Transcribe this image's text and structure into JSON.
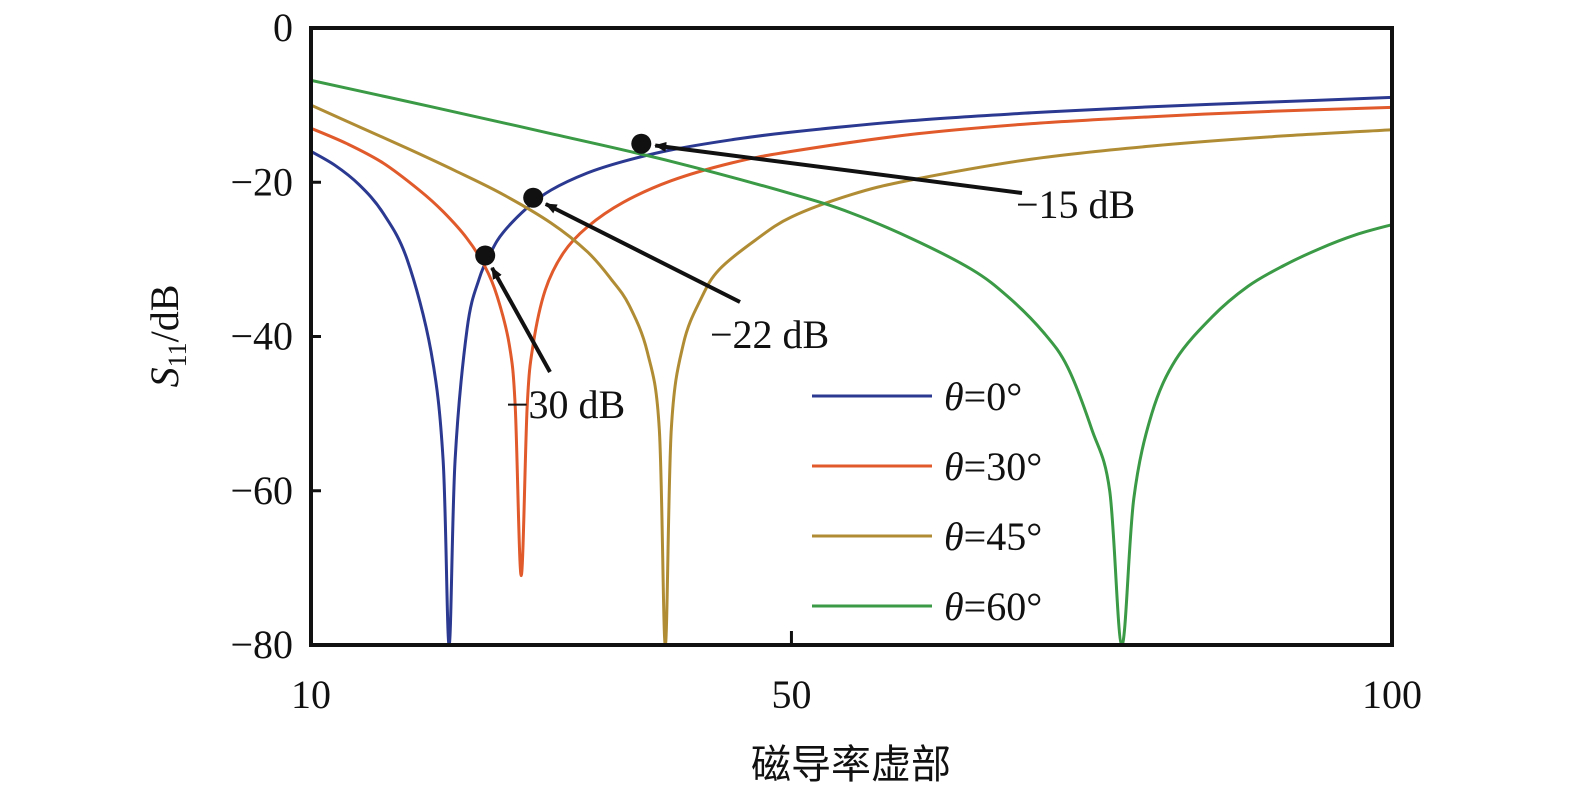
{
  "chart_data": {
    "type": "line",
    "title": "",
    "xlabel": "磁导率虚部",
    "ylabel": {
      "main": "S",
      "sub": "11",
      "rest": "/dB"
    },
    "xlim": [
      10,
      100
    ],
    "ylim": [
      -80,
      0
    ],
    "x_ticks": [
      10,
      50,
      100
    ],
    "y_ticks": [
      0,
      -20,
      -40,
      -60,
      -80
    ],
    "y_tick_labels": [
      "0",
      "−20",
      "−40",
      "−60",
      "−80"
    ],
    "grid": false,
    "legend_position": "bottom-right",
    "series": [
      {
        "name": "θ=0°",
        "theta": "0",
        "color": "#2b3990",
        "dip": 21.5,
        "min": -80,
        "x": [
          10,
          12,
          14,
          16,
          18,
          20,
          21,
          21.5,
          22,
          23,
          24,
          25,
          26,
          28,
          30,
          33,
          36,
          40,
          45,
          50,
          60,
          70,
          80,
          90,
          100
        ],
        "y": [
          -16,
          -17.8,
          -20.3,
          -24,
          -30,
          -42,
          -56,
          -80,
          -56,
          -39,
          -32.5,
          -29,
          -26.5,
          -23.3,
          -21,
          -18.8,
          -17.3,
          -15.8,
          -14.5,
          -13.5,
          -12,
          -11,
          -10.2,
          -9.6,
          -9
        ]
      },
      {
        "name": "θ=30°",
        "theta": "30",
        "color": "#e05a2b",
        "dip": 27.5,
        "min": -71,
        "x": [
          10,
          13,
          16,
          19,
          21,
          23,
          24.5,
          25.5,
          26.5,
          27,
          27.5,
          28,
          28.5,
          29.5,
          31,
          33,
          36,
          40,
          45,
          50,
          60,
          70,
          80,
          90,
          100
        ],
        "y": [
          -13,
          -15,
          -17.5,
          -21,
          -23.8,
          -27.3,
          -31,
          -34.8,
          -41,
          -49,
          -71,
          -49,
          -41,
          -34,
          -29.2,
          -25.8,
          -22.6,
          -19.8,
          -17.5,
          -16,
          -13.8,
          -12.4,
          -11.5,
          -10.8,
          -10.3
        ]
      },
      {
        "name": "θ=45°",
        "theta": "45",
        "color": "#b08d35",
        "dip": 39.5,
        "min": -80,
        "x": [
          10,
          14,
          18,
          22,
          26,
          30,
          33,
          35,
          36.5,
          38,
          39,
          39.5,
          40,
          41,
          42.5,
          44,
          47,
          50,
          55,
          60,
          70,
          80,
          90,
          100
        ],
        "y": [
          -10,
          -12.8,
          -15.6,
          -18.5,
          -21.6,
          -25.3,
          -29,
          -32.6,
          -36,
          -42,
          -52,
          -80,
          -52,
          -41,
          -35,
          -31.3,
          -27.5,
          -24.5,
          -21.6,
          -19.7,
          -17,
          -15.3,
          -14.1,
          -13.2
        ]
      },
      {
        "name": "θ=60°",
        "theta": "60",
        "color": "#3a9a45",
        "dip": 77.5,
        "min": -80,
        "x": [
          10,
          20,
          30,
          40,
          50,
          55,
          60,
          65,
          68,
          71,
          73,
          75,
          76.5,
          77.5,
          78.5,
          80,
          82,
          85,
          88,
          91,
          94,
          97,
          100
        ],
        "y": [
          -6.8,
          -10.2,
          -13.7,
          -17.3,
          -21.5,
          -24,
          -27.3,
          -31.3,
          -34.8,
          -39.5,
          -44,
          -52,
          -60,
          -80,
          -61,
          -50,
          -43,
          -37.5,
          -33.5,
          -30.8,
          -28.6,
          -26.8,
          -25.5
        ]
      }
    ],
    "annotations": [
      {
        "label": "−15 dB",
        "x": 37.5,
        "y": -15
      },
      {
        "label": "−22 dB",
        "x": 28.5,
        "y": -22
      },
      {
        "label": "−30 dB",
        "x": 24.5,
        "y": -29.5
      }
    ]
  }
}
